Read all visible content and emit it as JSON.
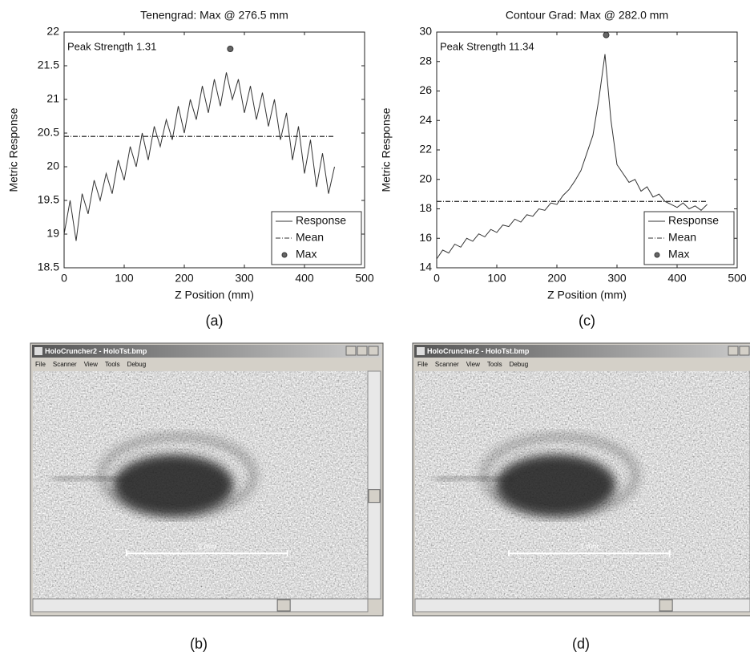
{
  "chart_data": [
    {
      "type": "line",
      "title": "Tenengrad: Max @ 276.5 mm",
      "xlabel": "Z Position (mm)",
      "ylabel": "Metric Response",
      "annotation": "Peak Strength 1.31",
      "caption": "(a)",
      "xlim": [
        0,
        500
      ],
      "xticks": [
        0,
        100,
        200,
        300,
        400,
        500
      ],
      "ylim": [
        18.5,
        22
      ],
      "yticks": [
        18.5,
        19,
        19.5,
        20,
        20.5,
        21,
        21.5,
        22
      ],
      "legend": "lower right",
      "series": [
        {
          "name": "Response",
          "color": "#333333",
          "linestyle": "solid",
          "x": [
            0,
            10,
            20,
            30,
            40,
            50,
            60,
            70,
            80,
            90,
            100,
            110,
            120,
            130,
            140,
            150,
            160,
            170,
            180,
            190,
            200,
            210,
            220,
            230,
            240,
            250,
            260,
            270,
            280,
            290,
            300,
            310,
            320,
            330,
            340,
            350,
            360,
            370,
            380,
            390,
            400,
            410,
            420,
            430,
            440,
            450
          ],
          "values": [
            19.0,
            19.5,
            18.9,
            19.6,
            19.3,
            19.8,
            19.5,
            19.9,
            19.6,
            20.1,
            19.8,
            20.3,
            20.0,
            20.5,
            20.1,
            20.6,
            20.3,
            20.7,
            20.4,
            20.9,
            20.5,
            21.0,
            20.7,
            21.2,
            20.8,
            21.3,
            20.9,
            21.4,
            21.0,
            21.3,
            20.8,
            21.2,
            20.7,
            21.1,
            20.6,
            21.0,
            20.4,
            20.8,
            20.1,
            20.6,
            19.9,
            20.4,
            19.7,
            20.2,
            19.6,
            20.0
          ]
        },
        {
          "name": "Mean",
          "color": "#333333",
          "linestyle": "dashdot",
          "x": [
            0,
            450
          ],
          "values": [
            20.45,
            20.45
          ]
        },
        {
          "name": "Max",
          "color": "#333333",
          "marker": "o",
          "x": [
            276.5
          ],
          "values": [
            21.75
          ]
        }
      ]
    },
    {
      "type": "line",
      "title": "Contour Grad: Max @ 282.0 mm",
      "xlabel": "Z Position (mm)",
      "ylabel": "Metric Response",
      "annotation": "Peak Strength 11.34",
      "caption": "(c)",
      "xlim": [
        0,
        500
      ],
      "xticks": [
        0,
        100,
        200,
        300,
        400,
        500
      ],
      "ylim": [
        14,
        30
      ],
      "yticks": [
        14,
        16,
        18,
        20,
        22,
        24,
        26,
        28,
        30
      ],
      "legend": "lower right",
      "series": [
        {
          "name": "Response",
          "color": "#333333",
          "linestyle": "solid",
          "x": [
            0,
            10,
            20,
            30,
            40,
            50,
            60,
            70,
            80,
            90,
            100,
            110,
            120,
            130,
            140,
            150,
            160,
            170,
            180,
            190,
            200,
            210,
            220,
            230,
            240,
            250,
            260,
            270,
            280,
            290,
            300,
            310,
            320,
            330,
            340,
            350,
            360,
            370,
            380,
            390,
            400,
            410,
            420,
            430,
            440,
            450
          ],
          "values": [
            14.6,
            15.2,
            15.0,
            15.6,
            15.4,
            16.0,
            15.8,
            16.3,
            16.1,
            16.6,
            16.4,
            16.9,
            16.8,
            17.3,
            17.1,
            17.6,
            17.5,
            18.0,
            17.9,
            18.4,
            18.3,
            18.9,
            19.3,
            19.9,
            20.6,
            21.8,
            23.0,
            25.5,
            28.5,
            24.0,
            21.0,
            20.4,
            19.8,
            20.0,
            19.2,
            19.5,
            18.8,
            19.0,
            18.5,
            18.3,
            18.1,
            18.4,
            18.0,
            18.2,
            17.9,
            18.3
          ]
        },
        {
          "name": "Mean",
          "color": "#333333",
          "linestyle": "dashdot",
          "x": [
            0,
            450
          ],
          "values": [
            18.5,
            18.5
          ]
        },
        {
          "name": "Max",
          "color": "#333333",
          "marker": "o",
          "x": [
            282.0
          ],
          "values": [
            29.8
          ]
        }
      ]
    }
  ],
  "screenshots": [
    {
      "title": "HoloCruncher2 - HoloTst.bmp",
      "menu": [
        "File",
        "Scanner",
        "View",
        "Tools",
        "Debug"
      ],
      "scale_label": "1 mm",
      "caption": "(b)"
    },
    {
      "title": "HoloCruncher2 - HoloTst.bmp",
      "menu": [
        "File",
        "Scanner",
        "View",
        "Tools",
        "Debug"
      ],
      "scale_label": "1 mm",
      "caption": "(d)"
    }
  ]
}
